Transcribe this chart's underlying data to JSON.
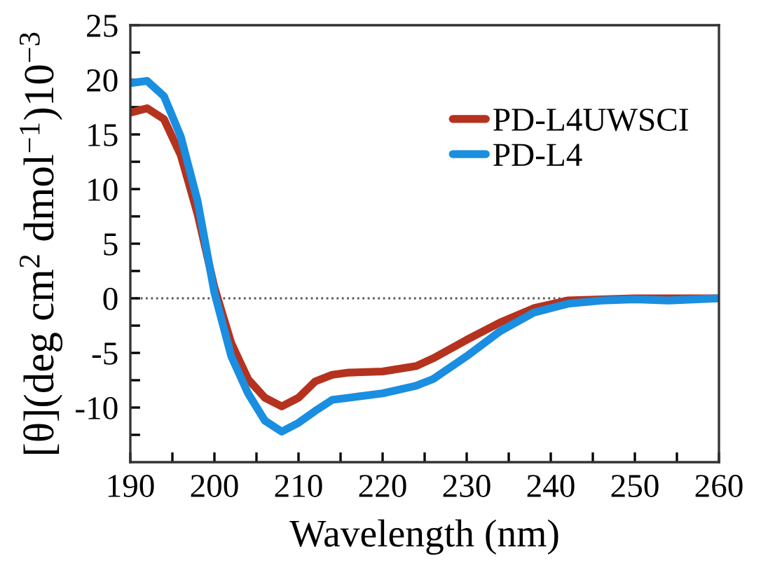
{
  "chart_data": {
    "type": "line",
    "xlabel": "Wavelength (nm)",
    "ylabel": "[θ](deg cm$^{2}$ dmol$^{−1}$)10$^{−3}$",
    "x": [
      190,
      192,
      194,
      196,
      198,
      200,
      202,
      204,
      206,
      208,
      210,
      212,
      214,
      216,
      220,
      224,
      226,
      230,
      234,
      238,
      242,
      246,
      250,
      254,
      260
    ],
    "series": [
      {
        "name": "PD-L4UWSCI",
        "color": "#b5321e",
        "values": [
          17.0,
          17.4,
          16.4,
          13.1,
          7.7,
          1.0,
          -4.1,
          -7.4,
          -9.1,
          -9.9,
          -9.1,
          -7.6,
          -7.0,
          -6.8,
          -6.7,
          -6.2,
          -5.5,
          -3.8,
          -2.2,
          -0.9,
          -0.2,
          -0.1,
          0,
          0,
          0
        ]
      },
      {
        "name": "PD-L4",
        "color": "#1a8ee0",
        "values": [
          19.7,
          19.9,
          18.5,
          14.8,
          8.9,
          0.5,
          -5.3,
          -8.7,
          -11.2,
          -12.2,
          -11.4,
          -10.3,
          -9.3,
          -9.1,
          -8.7,
          -8.0,
          -7.4,
          -5.3,
          -3.0,
          -1.3,
          -0.5,
          -0.2,
          -0.1,
          -0.2,
          0
        ]
      }
    ],
    "xlim": [
      190,
      260
    ],
    "xticks": [
      190,
      {
        "value": 195,
        "label": null
      },
      200,
      {
        "value": 205,
        "label": null
      },
      210,
      {
        "value": 215,
        "label": null
      },
      220,
      {
        "value": 225,
        "label": null
      },
      230,
      {
        "value": 235,
        "label": null
      },
      240,
      {
        "value": 245,
        "label": null
      },
      250,
      {
        "value": 255,
        "label": null
      },
      260
    ],
    "ylim": [
      -15,
      25
    ],
    "yticks": [
      {
        "value": -12.5,
        "label": null
      },
      -10,
      {
        "value": -7.5,
        "label": null
      },
      -5,
      {
        "value": -2.5,
        "label": null
      },
      0,
      {
        "value": 2.5,
        "label": null
      },
      5,
      {
        "value": 7.5,
        "label": null
      },
      10,
      {
        "value": 12.5,
        "label": null
      },
      15,
      {
        "value": 17.5,
        "label": null
      },
      20,
      {
        "value": 22.5,
        "label": null
      },
      25
    ],
    "ref_lines": [
      {
        "axis": "y",
        "value": 0,
        "color": "#555555",
        "line_style": "dotted"
      }
    ],
    "grid": false,
    "legend": "top right",
    "line_style": "solid",
    "marker": "none"
  }
}
